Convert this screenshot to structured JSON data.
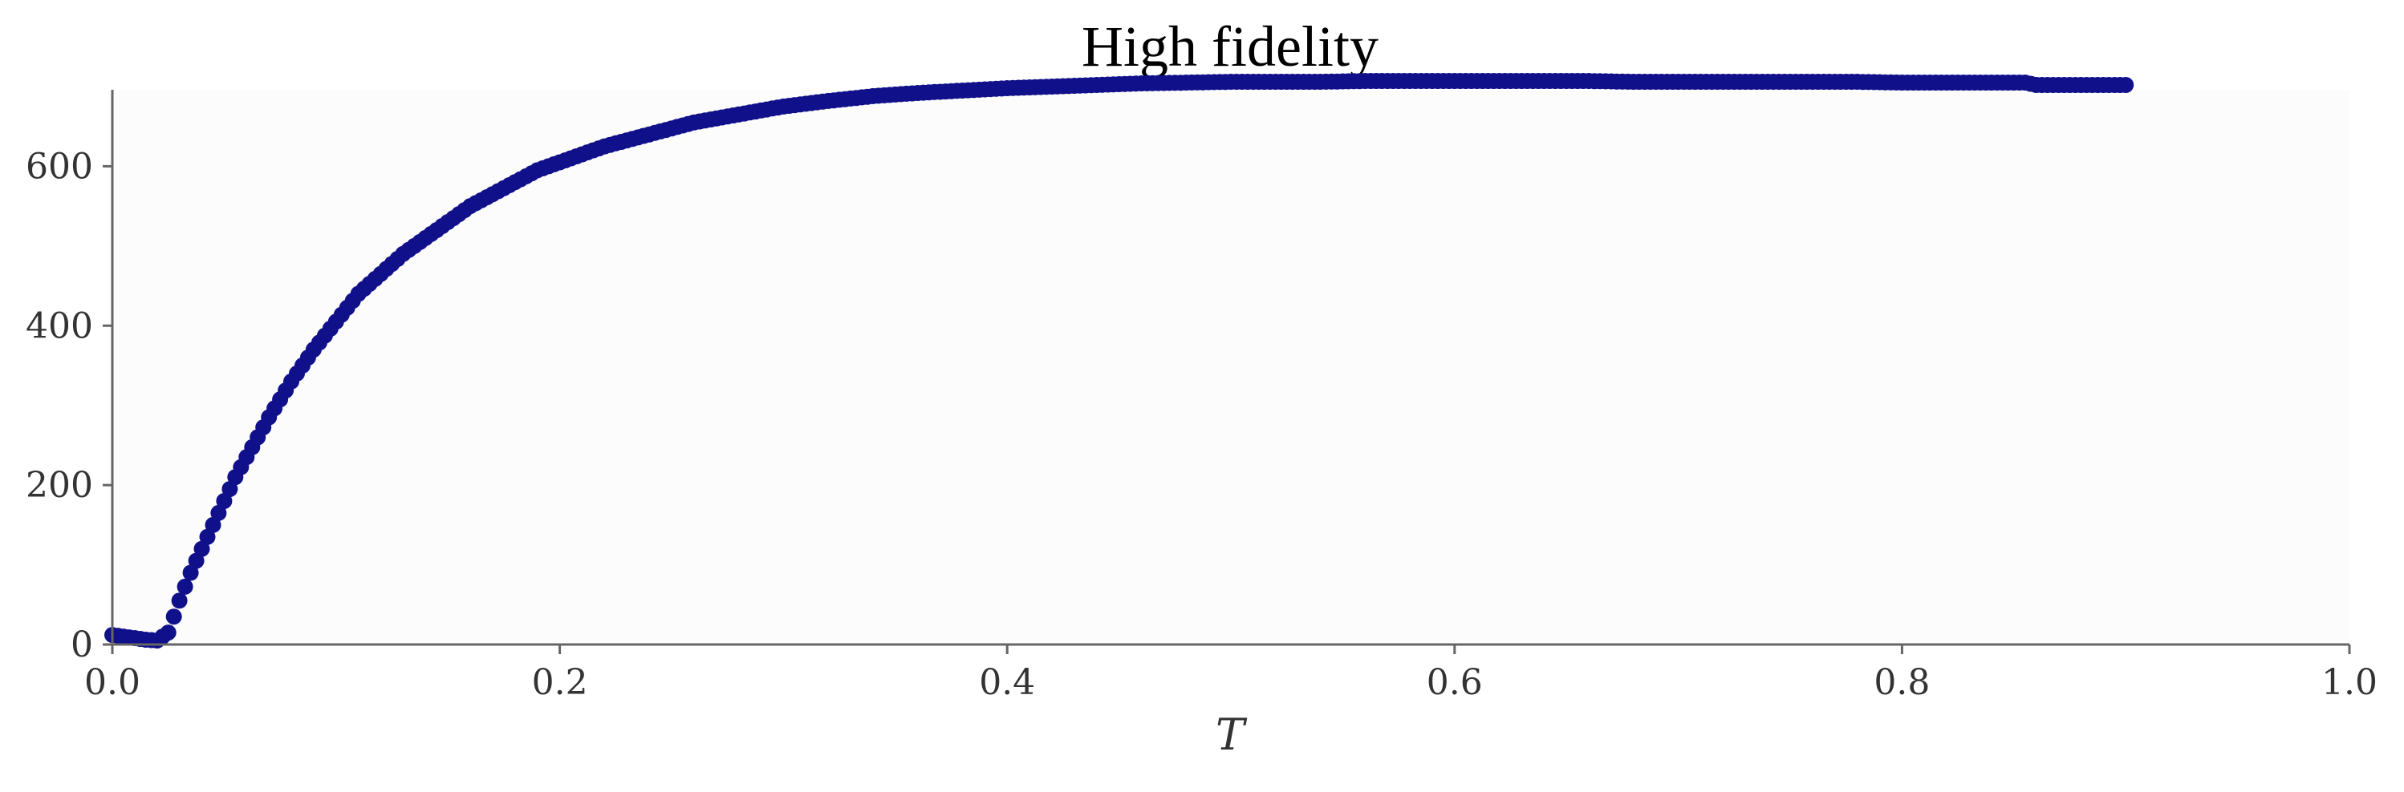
{
  "chart_data": {
    "type": "scatter",
    "title": "High fidelity",
    "xlabel": "T",
    "ylabel": "",
    "xlim": [
      0.0,
      1.0
    ],
    "ylim": [
      0,
      700
    ],
    "xticks": [
      0.0,
      0.2,
      0.4,
      0.6,
      0.8,
      1.0
    ],
    "xtick_labels": [
      "0.0",
      "0.2",
      "0.4",
      "0.6",
      "0.8",
      "1.0"
    ],
    "yticks": [
      0,
      200,
      400,
      600
    ],
    "ytick_labels": [
      "0",
      "200",
      "400",
      "600"
    ],
    "grid": false,
    "legend": "none",
    "marker_color": "#10108a",
    "axes_face_color": "#fcfcfc",
    "spine_color": "#666666",
    "series": [
      {
        "x": [
          0.0,
          0.005,
          0.01,
          0.015,
          0.02,
          0.025,
          0.03,
          0.035,
          0.04,
          0.045,
          0.05,
          0.055,
          0.06,
          0.07,
          0.08,
          0.09,
          0.1,
          0.11,
          0.12,
          0.13,
          0.14,
          0.15,
          0.16,
          0.17,
          0.18,
          0.19,
          0.2,
          0.22,
          0.24,
          0.26,
          0.28,
          0.3,
          0.32,
          0.34,
          0.36,
          0.38,
          0.4,
          0.42,
          0.44,
          0.46,
          0.48,
          0.5,
          0.52,
          0.54,
          0.56,
          0.58,
          0.6,
          0.62,
          0.64,
          0.66,
          0.68,
          0.7,
          0.72,
          0.74,
          0.76,
          0.78,
          0.8,
          0.82,
          0.84,
          0.855,
          0.86,
          0.87,
          0.88,
          0.89,
          0.9
        ],
        "y": [
          12,
          10,
          8,
          6,
          5,
          15,
          55,
          90,
          120,
          150,
          180,
          210,
          235,
          285,
          330,
          370,
          405,
          440,
          465,
          490,
          510,
          530,
          550,
          565,
          580,
          595,
          605,
          625,
          640,
          655,
          665,
          675,
          682,
          688,
          692,
          695,
          698,
          700,
          702,
          704,
          705,
          706,
          706,
          706,
          707,
          707,
          707,
          707,
          707,
          707,
          706,
          706,
          706,
          706,
          706,
          706,
          705,
          705,
          705,
          705,
          702,
          702,
          702,
          702,
          702
        ]
      }
    ]
  }
}
